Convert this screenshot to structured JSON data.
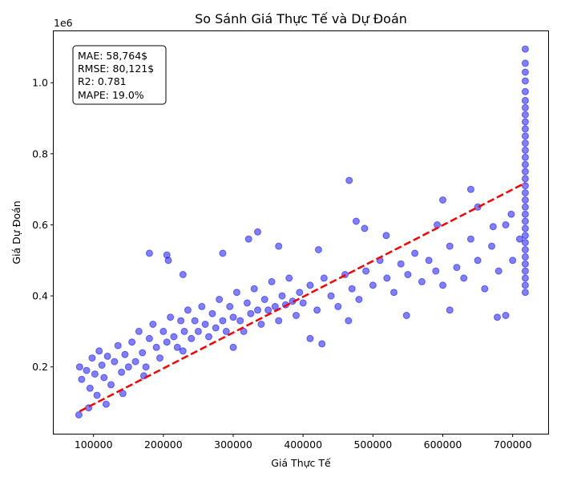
{
  "chart_data": {
    "type": "scatter",
    "title": "So Sánh Giá Thực Tế và Dự Đoán",
    "xlabel": "Giá Thực Tế",
    "ylabel": "Giá Dự Đoán",
    "y_offset_text": "1e6",
    "xlim": [
      43000,
      752000
    ],
    "ylim": [
      12000,
      1145000
    ],
    "x_ticks": [
      100000,
      200000,
      300000,
      400000,
      500000,
      600000,
      700000
    ],
    "x_tick_labels": [
      "100000",
      "200000",
      "300000",
      "400000",
      "500000",
      "600000",
      "700000"
    ],
    "y_ticks": [
      200000,
      400000,
      600000,
      800000,
      1000000
    ],
    "y_tick_labels": [
      "0.2",
      "0.4",
      "0.6",
      "0.8",
      "1.0"
    ],
    "grid": false,
    "point_color": "#0000ff",
    "point_opacity": 0.5,
    "reference_line": {
      "style": "dashed",
      "color": "#ff0000",
      "x": [
        80000,
        718000
      ],
      "y": [
        75000,
        718000
      ]
    },
    "stats_box": {
      "position": "top-left",
      "lines": [
        "MAE: 58,764$",
        "RMSE: 80,121$",
        "R2: 0.781",
        "MAPE: 19.0%"
      ]
    },
    "series": [
      {
        "points": [
          [
            80000,
            200000
          ],
          [
            83000,
            165000
          ],
          [
            90000,
            190000
          ],
          [
            95000,
            140000
          ],
          [
            98000,
            225000
          ],
          [
            102000,
            180000
          ],
          [
            105000,
            120000
          ],
          [
            108000,
            245000
          ],
          [
            112000,
            205000
          ],
          [
            115000,
            170000
          ],
          [
            120000,
            230000
          ],
          [
            125000,
            150000
          ],
          [
            130000,
            215000
          ],
          [
            135000,
            260000
          ],
          [
            140000,
            185000
          ],
          [
            145000,
            235000
          ],
          [
            150000,
            200000
          ],
          [
            155000,
            270000
          ],
          [
            160000,
            215000
          ],
          [
            165000,
            300000
          ],
          [
            170000,
            240000
          ],
          [
            175000,
            200000
          ],
          [
            180000,
            280000
          ],
          [
            185000,
            320000
          ],
          [
            190000,
            255000
          ],
          [
            195000,
            225000
          ],
          [
            200000,
            300000
          ],
          [
            205000,
            270000
          ],
          [
            210000,
            340000
          ],
          [
            215000,
            285000
          ],
          [
            220000,
            255000
          ],
          [
            225000,
            330000
          ],
          [
            230000,
            300000
          ],
          [
            235000,
            360000
          ],
          [
            240000,
            280000
          ],
          [
            245000,
            330000
          ],
          [
            250000,
            300000
          ],
          [
            255000,
            370000
          ],
          [
            260000,
            320000
          ],
          [
            265000,
            285000
          ],
          [
            270000,
            350000
          ],
          [
            275000,
            310000
          ],
          [
            280000,
            390000
          ],
          [
            285000,
            330000
          ],
          [
            290000,
            300000
          ],
          [
            295000,
            370000
          ],
          [
            300000,
            340000
          ],
          [
            305000,
            410000
          ],
          [
            310000,
            330000
          ],
          [
            315000,
            300000
          ],
          [
            320000,
            380000
          ],
          [
            325000,
            350000
          ],
          [
            330000,
            420000
          ],
          [
            335000,
            360000
          ],
          [
            340000,
            320000
          ],
          [
            345000,
            390000
          ],
          [
            350000,
            360000
          ],
          [
            355000,
            440000
          ],
          [
            360000,
            370000
          ],
          [
            365000,
            330000
          ],
          [
            370000,
            400000
          ],
          [
            375000,
            375000
          ],
          [
            380000,
            450000
          ],
          [
            385000,
            385000
          ],
          [
            390000,
            345000
          ],
          [
            395000,
            410000
          ],
          [
            400000,
            380000
          ],
          [
            410000,
            430000
          ],
          [
            420000,
            360000
          ],
          [
            430000,
            450000
          ],
          [
            440000,
            400000
          ],
          [
            450000,
            370000
          ],
          [
            460000,
            460000
          ],
          [
            470000,
            420000
          ],
          [
            480000,
            390000
          ],
          [
            490000,
            470000
          ],
          [
            500000,
            430000
          ],
          [
            510000,
            500000
          ],
          [
            520000,
            450000
          ],
          [
            530000,
            410000
          ],
          [
            540000,
            490000
          ],
          [
            550000,
            460000
          ],
          [
            560000,
            520000
          ],
          [
            570000,
            440000
          ],
          [
            580000,
            500000
          ],
          [
            590000,
            470000
          ],
          [
            600000,
            430000
          ],
          [
            610000,
            540000
          ],
          [
            620000,
            480000
          ],
          [
            630000,
            450000
          ],
          [
            640000,
            560000
          ],
          [
            650000,
            500000
          ],
          [
            660000,
            420000
          ],
          [
            670000,
            540000
          ],
          [
            680000,
            470000
          ],
          [
            690000,
            600000
          ],
          [
            700000,
            500000
          ],
          [
            710000,
            560000
          ],
          [
            180000,
            520000
          ],
          [
            205000,
            515000
          ],
          [
            207000,
            500000
          ],
          [
            228000,
            460000
          ],
          [
            285000,
            520000
          ],
          [
            322000,
            560000
          ],
          [
            335000,
            580000
          ],
          [
            365000,
            540000
          ],
          [
            422000,
            530000
          ],
          [
            466000,
            725000
          ],
          [
            476000,
            610000
          ],
          [
            488000,
            590000
          ],
          [
            519000,
            570000
          ],
          [
            592000,
            600000
          ],
          [
            600000,
            670000
          ],
          [
            640000,
            700000
          ],
          [
            650000,
            650000
          ],
          [
            672000,
            595000
          ],
          [
            698000,
            630000
          ],
          [
            79000,
            65000
          ],
          [
            93000,
            85000
          ],
          [
            118000,
            95000
          ],
          [
            142000,
            125000
          ],
          [
            172000,
            175000
          ],
          [
            228000,
            245000
          ],
          [
            300000,
            255000
          ],
          [
            410000,
            280000
          ],
          [
            427000,
            265000
          ],
          [
            465000,
            330000
          ],
          [
            548000,
            345000
          ],
          [
            610000,
            360000
          ],
          [
            678000,
            340000
          ],
          [
            690000,
            345000
          ],
          [
            718000,
            410000
          ],
          [
            718000,
            430000
          ],
          [
            718000,
            450000
          ],
          [
            718000,
            470000
          ],
          [
            718000,
            490000
          ],
          [
            718000,
            510000
          ],
          [
            718000,
            530000
          ],
          [
            718000,
            550000
          ],
          [
            718000,
            570000
          ],
          [
            718000,
            590000
          ],
          [
            718000,
            610000
          ],
          [
            718000,
            630000
          ],
          [
            718000,
            650000
          ],
          [
            718000,
            670000
          ],
          [
            718000,
            690000
          ],
          [
            718000,
            710000
          ],
          [
            718000,
            730000
          ],
          [
            718000,
            750000
          ],
          [
            718000,
            770000
          ],
          [
            718000,
            790000
          ],
          [
            718000,
            810000
          ],
          [
            718000,
            830000
          ],
          [
            718000,
            850000
          ],
          [
            718000,
            870000
          ],
          [
            718000,
            890000
          ],
          [
            718000,
            910000
          ],
          [
            718000,
            930000
          ],
          [
            718000,
            950000
          ],
          [
            718000,
            975000
          ],
          [
            718000,
            1005000
          ],
          [
            718000,
            1030000
          ],
          [
            718000,
            1055000
          ],
          [
            718000,
            1095000
          ]
        ]
      }
    ]
  }
}
